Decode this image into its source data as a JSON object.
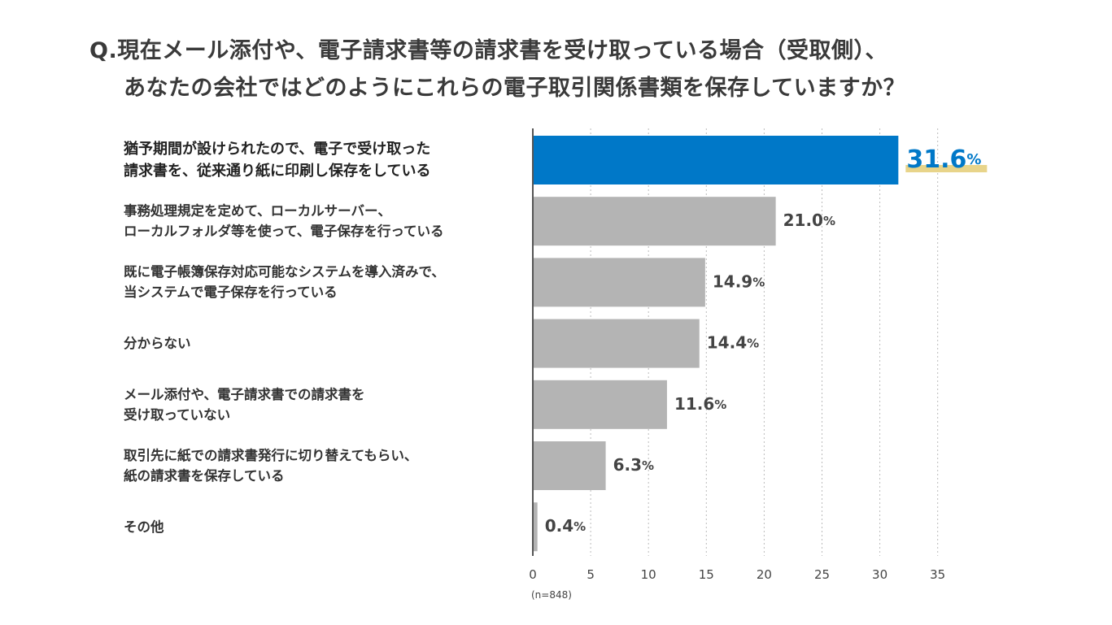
{
  "title": {
    "line1": "Q.現在メール添付や、電子請求書等の請求書を受け取っている場合（受取側）、",
    "line2": "あなたの会社ではどのようにこれらの電子取引関係書類を保存していますか？"
  },
  "note": "(n=848)",
  "colors": {
    "highlight": "#0078C8",
    "bar": "#B4B4B4",
    "value_text": "#444444",
    "highlight_underline": "#E8D48A",
    "axis": "#555555",
    "grid": "#BBBBBB"
  },
  "chart_data": {
    "type": "bar",
    "orientation": "horizontal",
    "categories": [
      "猶予期間が設けられたので、電子で受け取った\n請求書を、従来通り紙に印刷し保存をしている",
      "事務処理規定を定めて、ローカルサーバー、\nローカルフォルダ等を使って、電子保存を行っている",
      "既に電子帳簿保存対応可能なシステムを導入済みで、\n当システムで電子保存を行っている",
      "分からない",
      "メール添付や、電子請求書での請求書を\n受け取っていない",
      "取引先に紙での請求書発行に切り替えてもらい、\n紙の請求書を保存している",
      "その他"
    ],
    "values": [
      31.6,
      21.0,
      14.9,
      14.4,
      11.6,
      6.3,
      0.4
    ],
    "value_labels": [
      "31.6",
      "21.0",
      "14.9",
      "14.4",
      "11.6",
      "6.3",
      "0.4"
    ],
    "unit": "%",
    "highlight_index": 0,
    "xlim": [
      0,
      35
    ],
    "xticks": [
      0,
      5,
      10,
      15,
      20,
      25,
      30,
      35
    ],
    "grid": true
  }
}
